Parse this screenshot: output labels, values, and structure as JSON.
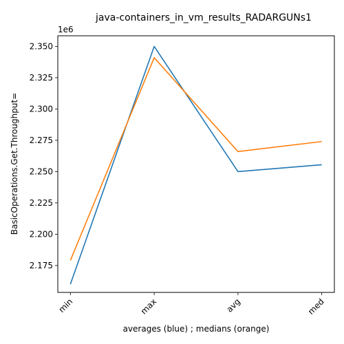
{
  "chart_data": {
    "type": "line",
    "title": "java-containers_in_vm_results_RADARGUNs1",
    "xlabel": "averages (blue) ; medians (orange)",
    "ylabel": "BasicOperations.Get.Throughput=",
    "categories": [
      "min",
      "max",
      "avg",
      "med"
    ],
    "scale_exponent_label": "1e6",
    "ylim": [
      2.1535,
      2.3585
    ],
    "yticks": [
      2.175,
      2.2,
      2.225,
      2.25,
      2.275,
      2.3,
      2.325,
      2.35
    ],
    "ytick_labels": [
      "2.175",
      "2.200",
      "2.225",
      "2.250",
      "2.275",
      "2.300",
      "2.325",
      "2.350"
    ],
    "series": [
      {
        "color": "#1f77b4",
        "values": [
          2.16,
          2.35,
          2.25,
          2.2555
        ]
      },
      {
        "color": "#ff7f0e",
        "values": [
          2.179,
          2.341,
          2.266,
          2.274
        ]
      }
    ],
    "grid": false,
    "legend": "none"
  }
}
